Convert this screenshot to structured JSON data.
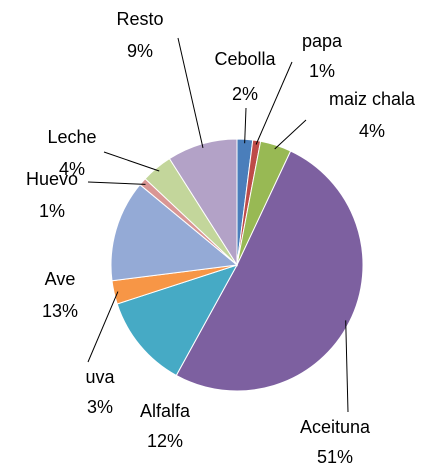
{
  "chart_data": {
    "type": "pie",
    "categories": [
      "Cebolla",
      "papa",
      "maiz chala",
      "Aceituna",
      "Alfalfa",
      "uva",
      "Ave",
      "Huevo",
      "Leche",
      "Resto"
    ],
    "values": [
      2,
      1,
      4,
      51,
      12,
      3,
      13,
      1,
      4,
      9
    ],
    "value_labels": [
      "2%",
      "1%",
      "4%",
      "51%",
      "12%",
      "3%",
      "13%",
      "1%",
      "4%",
      "9%"
    ],
    "colors": [
      "#4a7ebb",
      "#be4b48",
      "#98b954",
      "#7d60a0",
      "#46aac5",
      "#f79646",
      "#94aad6",
      "#d99694",
      "#c3d69b",
      "#b3a2c7"
    ]
  }
}
